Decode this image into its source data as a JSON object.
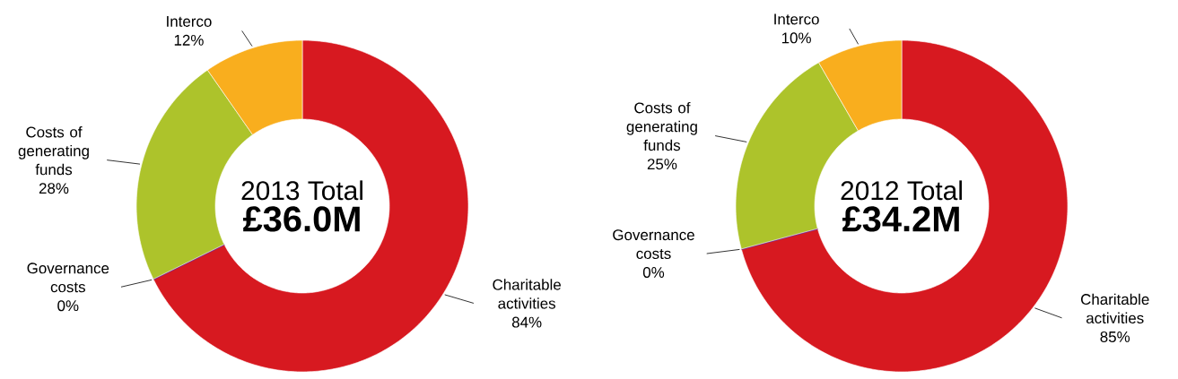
{
  "chart_data": [
    {
      "type": "donut",
      "title": "2013 Total",
      "subtitle": "£36.0M",
      "categories": [
        "Charitable activities",
        "Governance costs",
        "Costs of generating funds",
        "Interco"
      ],
      "values": [
        84,
        0,
        28,
        12
      ],
      "colors": [
        "#d71920",
        "#7b2a8c",
        "#adc32b",
        "#f9ae1e"
      ],
      "value_labels": [
        "84%",
        "0%",
        "28%",
        "12%"
      ]
    },
    {
      "type": "donut",
      "title": "2012 Total",
      "subtitle": "£34.2M",
      "categories": [
        "Charitable activities",
        "Governance costs",
        "Costs of generating funds",
        "Interco"
      ],
      "values": [
        85,
        0,
        25,
        10
      ],
      "colors": [
        "#d71920",
        "#7b2a8c",
        "#adc32b",
        "#f9ae1e"
      ],
      "value_labels": [
        "85%",
        "0%",
        "25%",
        "10%"
      ]
    }
  ]
}
